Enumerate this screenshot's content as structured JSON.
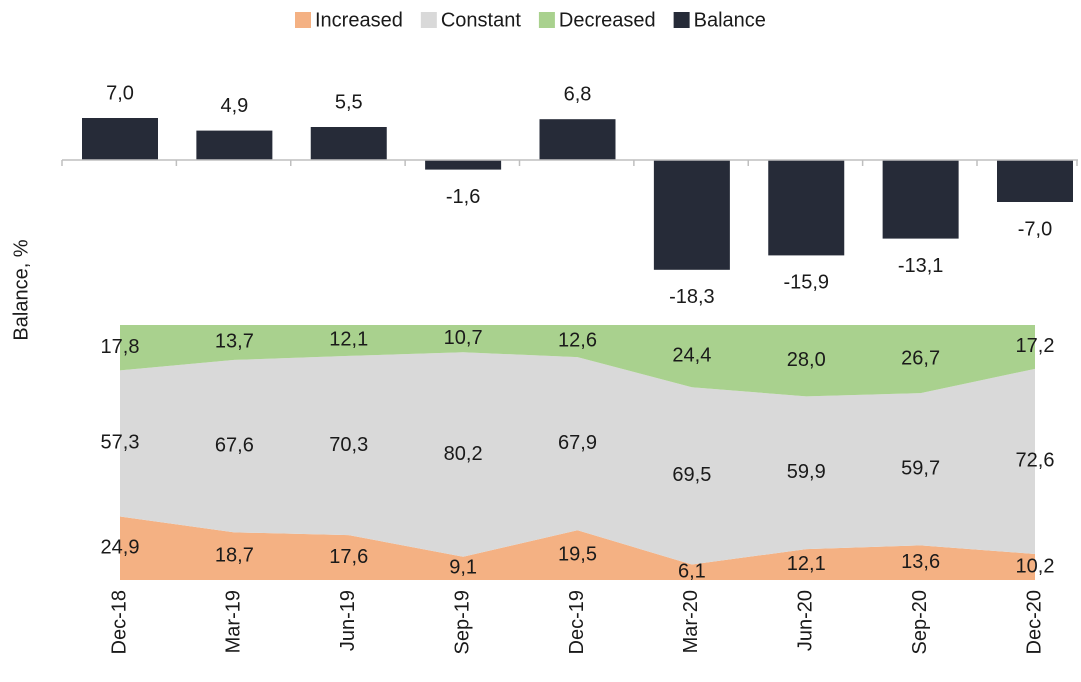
{
  "chart_data": {
    "type": "bar-area",
    "ylabel": "Balance, %",
    "categories": [
      "Dec-18",
      "Mar-19",
      "Jun-19",
      "Sep-19",
      "Dec-19",
      "Mar-20",
      "Jun-20",
      "Sep-20",
      "Dec-20"
    ],
    "series": [
      {
        "name": "Increased",
        "type": "area",
        "axis": "y2",
        "color": "#f4b183",
        "values": [
          24.9,
          18.7,
          17.6,
          9.1,
          19.5,
          6.1,
          12.1,
          13.6,
          10.2
        ],
        "value_labels": [
          "24,9",
          "18,7",
          "17,6",
          "9,1",
          "19,5",
          "6,1",
          "12,1",
          "13,6",
          "10,2"
        ]
      },
      {
        "name": "Constant",
        "type": "area",
        "axis": "y2",
        "color": "#d9d9d9",
        "values": [
          57.3,
          67.6,
          70.3,
          80.2,
          67.9,
          69.5,
          59.9,
          59.7,
          72.6
        ],
        "value_labels": [
          "57,3",
          "67,6",
          "70,3",
          "80,2",
          "67,9",
          "69,5",
          "59,9",
          "59,7",
          "72,6"
        ]
      },
      {
        "name": "Decreased",
        "type": "area",
        "axis": "y2",
        "color": "#a9d18e",
        "values": [
          17.8,
          13.7,
          12.1,
          10.7,
          12.6,
          24.4,
          28.0,
          26.7,
          17.2
        ],
        "value_labels": [
          "17,8",
          "13,7",
          "12,1",
          "10,7",
          "12,6",
          "24,4",
          "28,0",
          "26,7",
          "17,2"
        ]
      },
      {
        "name": "Balance",
        "type": "bar",
        "color": "#262b38",
        "values": [
          7.0,
          4.9,
          5.5,
          -1.6,
          6.8,
          -18.3,
          -15.9,
          -13.1,
          -7.0
        ],
        "value_labels": [
          "7,0",
          "4,9",
          "5,5",
          "-1,6",
          "6,8",
          "-18,3",
          "-15,9",
          "-13,1",
          "-7,0"
        ]
      }
    ],
    "ylim": [
      -20,
      10
    ],
    "y2lim": [
      0,
      100
    ]
  }
}
